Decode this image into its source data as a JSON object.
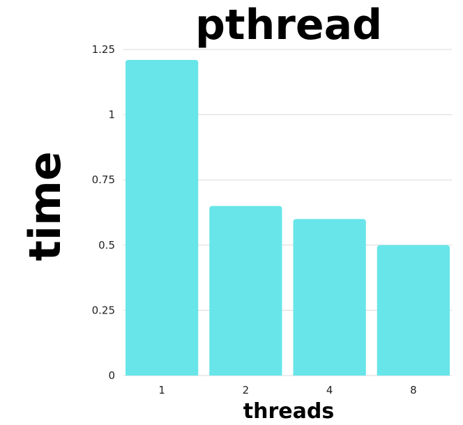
{
  "chart_data": {
    "type": "bar",
    "title": "pthread",
    "xlabel": "threads",
    "ylabel": "time",
    "categories": [
      "1",
      "2",
      "4",
      "8"
    ],
    "values": [
      1.21,
      0.65,
      0.6,
      0.5
    ],
    "ylim": [
      0,
      1.25
    ],
    "yticks": [
      0,
      0.25,
      0.5,
      0.75,
      1,
      1.25
    ],
    "ytick_labels": [
      "0",
      "0.25",
      "0.5",
      "0.75",
      "1",
      "1.25"
    ],
    "grid": true,
    "legend": "none",
    "colors": {
      "bar": "#67e5e9",
      "grid": "#d9d9d9",
      "text": "#000000"
    }
  }
}
